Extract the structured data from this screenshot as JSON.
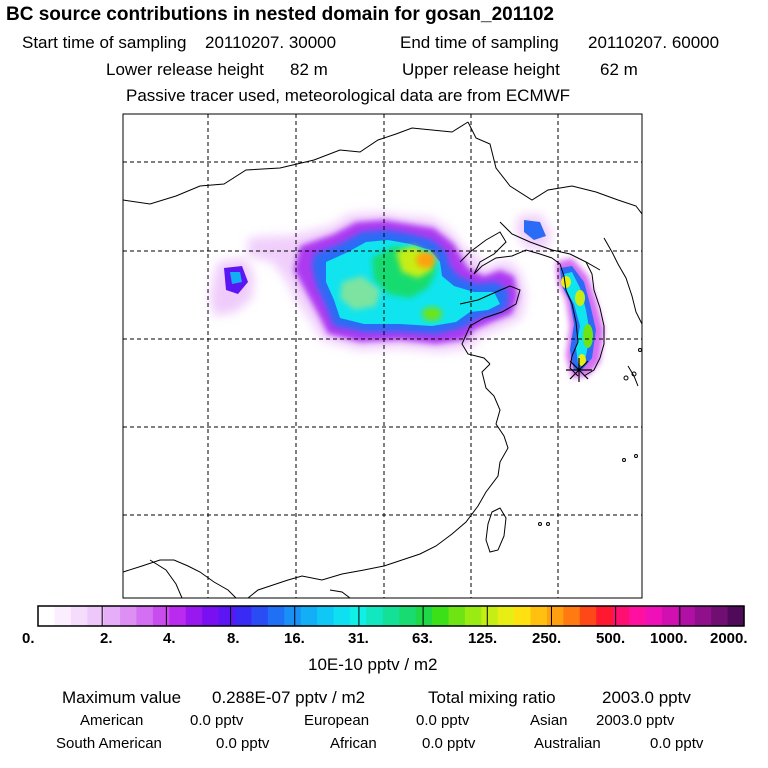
{
  "header": {
    "title": "BC  source contributions in nested domain for gosan_201102",
    "start_label": "Start time of sampling",
    "start_value": "20110207. 30000",
    "end_label": "End time of sampling",
    "end_value": "20110207. 60000",
    "lower_label": "Lower release height",
    "lower_value": "82 m",
    "upper_label": "Upper release height",
    "upper_value": "62 m",
    "note": "Passive tracer used, meteorological data are from ECMWF"
  },
  "colorbar": {
    "unit": "10E-10 pptv / m2",
    "ticks": [
      "0.",
      "2.",
      "4.",
      "8.",
      "16.",
      "31.",
      "63.",
      "125.",
      "250.",
      "500.",
      "1000.",
      "2000."
    ],
    "colors": [
      "#ffffff",
      "#fbeefe",
      "#f5dcfc",
      "#efc8fb",
      "#e6aef8",
      "#dd8ff4",
      "#d46ef2",
      "#c94cef",
      "#bb2aef",
      "#9a18f0",
      "#7a10f2",
      "#5c16f4",
      "#3a2af5",
      "#2a4cf5",
      "#2070f5",
      "#1890f6",
      "#12aff7",
      "#10c8f6",
      "#0ee0f2",
      "#10f0e6",
      "#12e8c0",
      "#14e098",
      "#18dc70",
      "#1ed848",
      "#3ce018",
      "#6ee414",
      "#9aea14",
      "#c6ee14",
      "#e8ee14",
      "#ffe010",
      "#ffc010",
      "#ffa010",
      "#ff7a10",
      "#ff4818",
      "#ff1830",
      "#ff1070",
      "#ff10a0",
      "#f010b8",
      "#d010b0",
      "#b010a4",
      "#90108c",
      "#700e72",
      "#500a5a"
    ]
  },
  "footer": {
    "max_label": "Maximum value",
    "max_value": "0.288E-07 pptv / m2",
    "total_label": "Total mixing ratio",
    "total_value": "2003.0 pptv",
    "sources": [
      {
        "name": "American",
        "value": "0.0 pptv"
      },
      {
        "name": "European",
        "value": "0.0 pptv"
      },
      {
        "name": "Asian",
        "value": "2003.0 pptv"
      },
      {
        "name": "South American",
        "value": "0.0 pptv"
      },
      {
        "name": "African",
        "value": "0.0 pptv"
      },
      {
        "name": "Australian",
        "value": "0.0 pptv"
      }
    ]
  },
  "chart_data": {
    "type": "heatmap",
    "title": "BC  source contributions in nested domain for gosan_201102",
    "colorbar_unit": "10E-10 pptv / m2",
    "colorbar_ticks": [
      0,
      2,
      4,
      8,
      16,
      31,
      63,
      125,
      250,
      500,
      1000,
      2000
    ],
    "grid": true,
    "receptor": "gosan",
    "max_value": "0.288E-07 pptv / m2",
    "total_mixing_ratio_pptv": 2003.0
  }
}
